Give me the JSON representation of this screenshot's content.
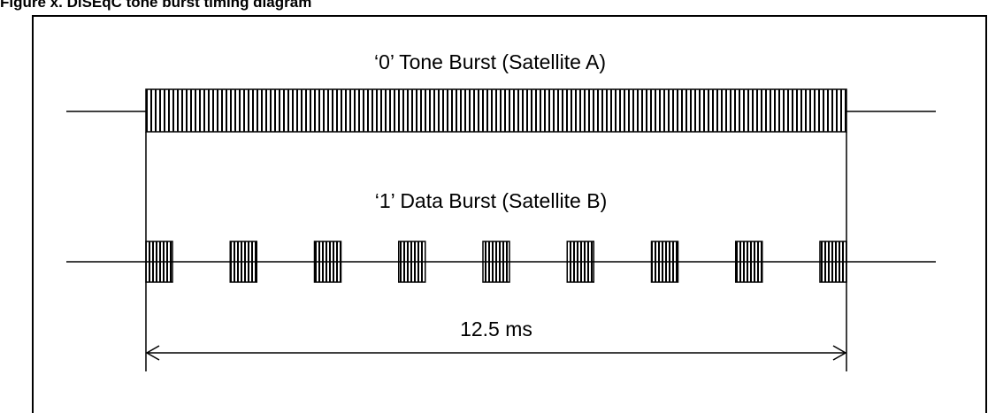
{
  "figure": {
    "caption": "Figure x. DiSEqC tone burst timing diagram"
  },
  "diagram": {
    "tone_burst": {
      "label": "‘0’ Tone Burst (Satellite A)",
      "duration_ms": 12.5,
      "style": "continuous"
    },
    "data_burst": {
      "label": "‘1’ Data Burst (Satellite B)",
      "segment_count": 9,
      "style": "modulated"
    },
    "dimension": {
      "label": "12.5 ms",
      "spans": "full burst duration"
    },
    "colors": {
      "stroke": "#000000",
      "background": "#ffffff"
    }
  }
}
